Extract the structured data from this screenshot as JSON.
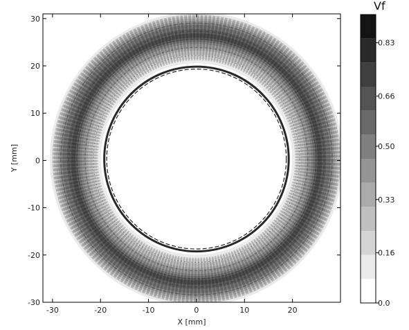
{
  "chart_data": {
    "type": "heatmap",
    "title": "",
    "xlabel": "X [mm]",
    "ylabel": "Y [mm]",
    "xlim": [
      -32,
      30
    ],
    "ylim": [
      -30,
      31
    ],
    "x_ticks": [
      -30,
      -20,
      -10,
      0,
      10,
      20
    ],
    "y_ticks": [
      -30,
      -20,
      -10,
      0,
      10,
      20,
      30
    ],
    "grid": false,
    "colorbar": {
      "title": "Vf",
      "min": 0.0,
      "max": 0.92,
      "levels": 12,
      "tick_values": [
        0.0,
        0.16,
        0.33,
        0.5,
        0.66,
        0.83
      ],
      "tick_labels": [
        "0.0",
        "0.16",
        "0.33",
        "0.50",
        "0.66",
        "0.83"
      ],
      "colormap": "greys"
    },
    "field": {
      "description_of_shape": "annular band",
      "inner_ring_radius_mm": 19,
      "outer_radius_mm": 29.5,
      "band_peak_vf": 0.7,
      "center_vf": 0.0,
      "ring_edge_vf": 0.88
    }
  }
}
